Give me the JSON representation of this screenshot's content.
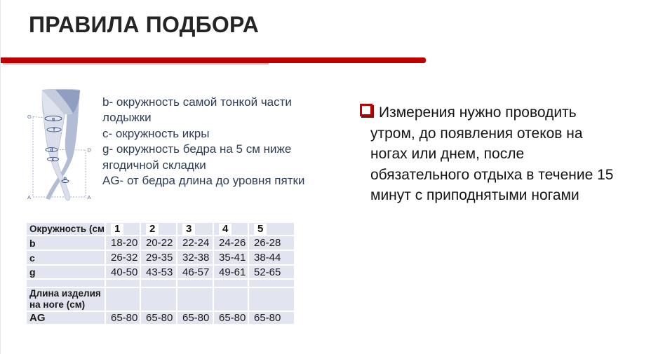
{
  "slide": {
    "title": "ПРАВИЛА ПОДБОРА"
  },
  "colors": {
    "accent_red": "#bf0000",
    "table_cell_bg": "#e2e5f0",
    "legend_text": "#2e3d55",
    "note_text": "#141414",
    "title_text": "#252525",
    "diagram_ink": "#33477c"
  },
  "diagram": {
    "corner_labels": {
      "top_left": "G",
      "bottom_left": "A",
      "bottom_right": "A",
      "right": "D"
    },
    "measure_points": {
      "g": "g",
      "f": "f",
      "d": "d",
      "c": "c",
      "b": "b"
    }
  },
  "legend": {
    "text": "b- окружность самой тонкой части\nлодыжки\nc- окружность икры\ng- окружность бедра на 5 см ниже\nягодичной складки\nAG- от бедра длина до уровня пятки"
  },
  "note": {
    "bullet_icon": "red-square-bullet",
    "text": "Измерения нужно проводить\nутром, до появления отеков на\nногах или днем, после\nобязательного отдыха в течение 15\nминут с приподнятыми ногами"
  },
  "size_table": {
    "header": {
      "label": "Окружность (см)",
      "sizes": [
        "1",
        "2",
        "3",
        "4",
        "5"
      ]
    },
    "rows": [
      {
        "label": "b",
        "values": [
          "18-20",
          "20-22",
          "22-24",
          "24-26",
          "26-28"
        ]
      },
      {
        "label": "c",
        "values": [
          "26-32",
          "29-35",
          "32-38",
          "35-41",
          "38-44"
        ]
      },
      {
        "label": "g",
        "values": [
          "40-50",
          "43-53",
          "46-57",
          "49-61",
          "52-65"
        ]
      },
      {
        "label": "",
        "values": [
          "",
          "",
          "",
          "",
          ""
        ]
      },
      {
        "label": "Длина изделия\nна ноге (см)",
        "values": [
          "",
          "",
          "",
          "",
          ""
        ]
      },
      {
        "label": "AG",
        "values": [
          "65-80",
          "65-80",
          "65-80",
          "65-80",
          "65-80"
        ]
      }
    ]
  }
}
